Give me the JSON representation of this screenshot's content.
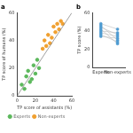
{
  "chart_data": [
    {
      "type": "scatter",
      "title": "a",
      "x_label": "TP score of assistants (%)",
      "y_label": "TP score of humans (%)",
      "xlim": [
        0,
        60
      ],
      "ylim": [
        0,
        60
      ],
      "xticks": [
        0,
        20,
        40,
        60
      ],
      "yticks": [
        0,
        20,
        40,
        60
      ],
      "grid": false,
      "legend": "bottom",
      "reference_line": {
        "x": [
          0,
          60
        ],
        "y": [
          0,
          60
        ]
      },
      "series": [
        {
          "name": "Experts",
          "color": "#5cb85c",
          "x": [
            5,
            8,
            10,
            14,
            18,
            20,
            24,
            12,
            16,
            22
          ],
          "values": [
            8,
            5,
            14,
            10,
            22,
            16,
            20,
            18,
            12,
            26
          ]
        },
        {
          "name": "Non-experts",
          "color": "#f0a030",
          "x": [
            30,
            34,
            38,
            40,
            42,
            36,
            44,
            46,
            48,
            32,
            28,
            50
          ],
          "values": [
            40,
            44,
            42,
            50,
            46,
            38,
            52,
            48,
            54,
            36,
            34,
            52
          ]
        }
      ]
    },
    {
      "type": "line",
      "title": "b",
      "y_label": "TP score (%)",
      "categories": [
        "Experts",
        "Non-experts"
      ],
      "ylim": [
        0,
        60
      ],
      "yticks": [
        0,
        20,
        40,
        60
      ],
      "grid": false,
      "color": "#4e9bd1",
      "pairs": [
        [
          48,
          42
        ],
        [
          44,
          36
        ],
        [
          40,
          38
        ],
        [
          36,
          28
        ],
        [
          46,
          30
        ],
        [
          38,
          34
        ],
        [
          42,
          26
        ],
        [
          34,
          32
        ]
      ]
    }
  ]
}
